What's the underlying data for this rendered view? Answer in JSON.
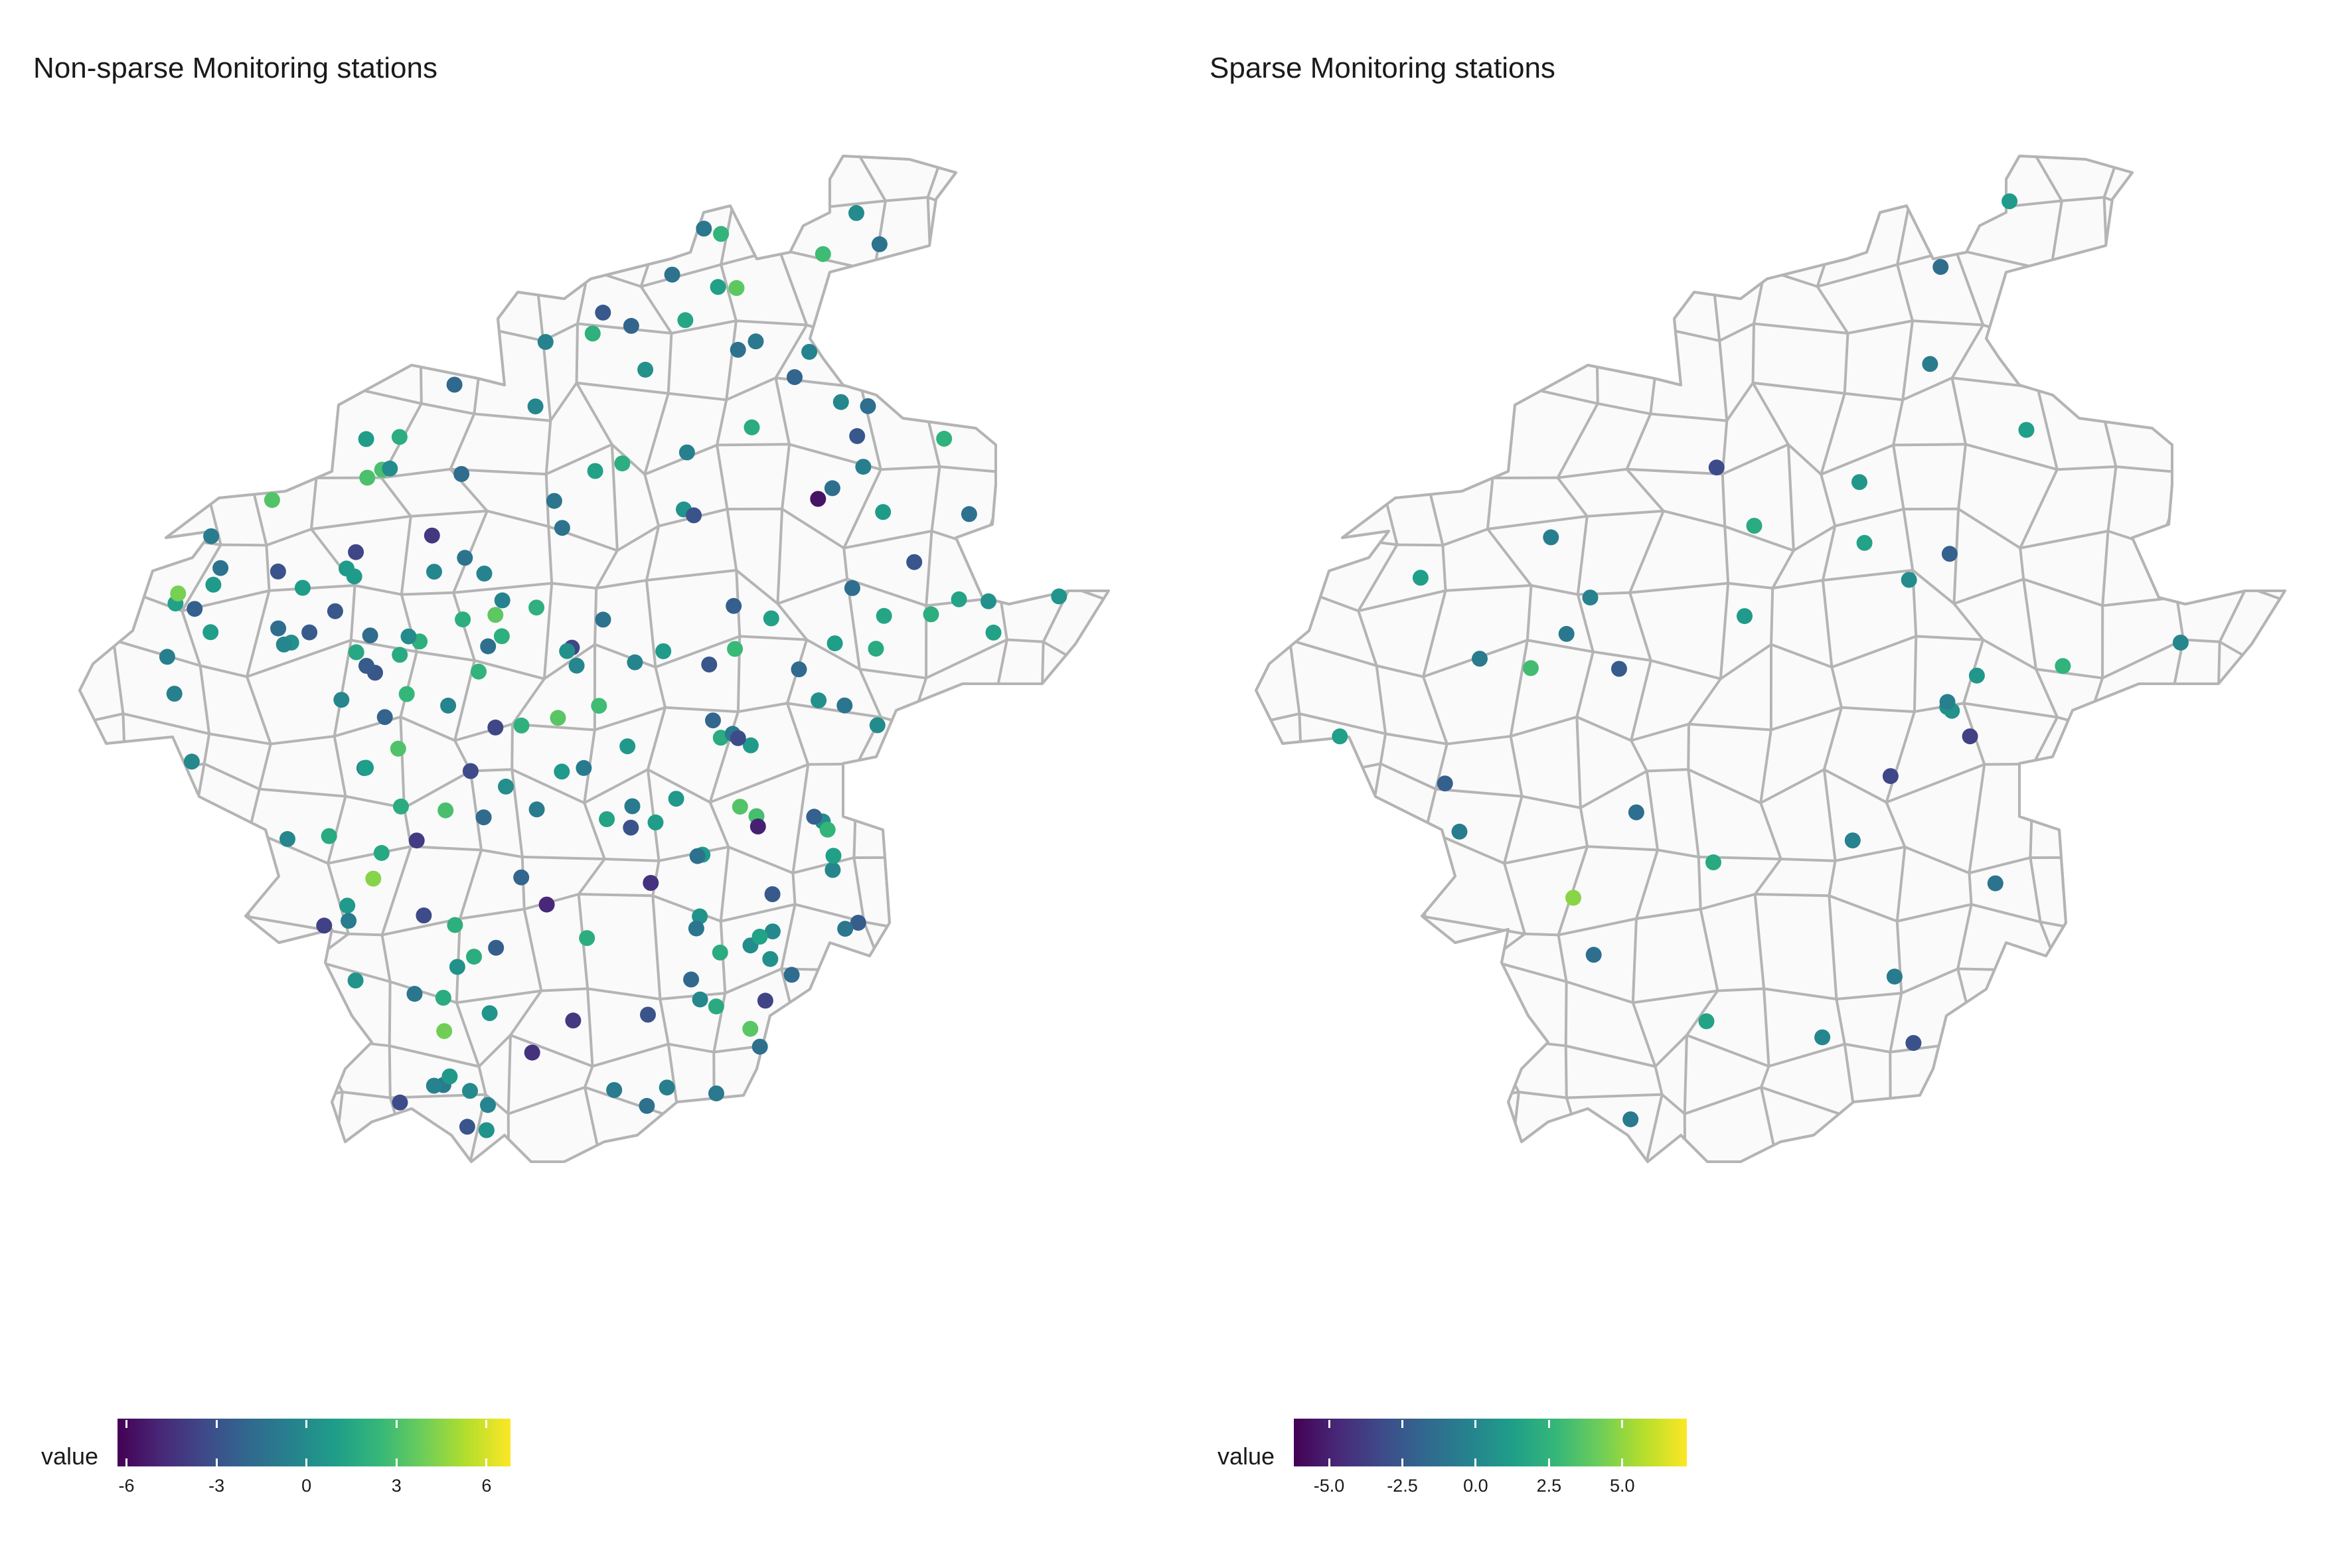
{
  "colors": {
    "viridis": [
      "#440154",
      "#482878",
      "#3e4a89",
      "#31688e",
      "#26828e",
      "#1f9e89",
      "#35b779",
      "#6dcd59",
      "#b4de2c",
      "#fde725"
    ],
    "boundary": "#b4b4b4",
    "region_fill": "#fafafa"
  },
  "panels": [
    {
      "title": "Non-sparse Monitoring stations",
      "legend": {
        "title": "value",
        "range": [
          -6.3,
          6.8
        ],
        "ticks": [
          -6,
          -3,
          0,
          3,
          6
        ],
        "tick_labels": [
          "-6",
          "-3",
          "0",
          "3",
          "6"
        ]
      },
      "station_count": 200,
      "value_scale": 6
    },
    {
      "title": "Sparse Monitoring stations",
      "legend": {
        "title": "value",
        "range": [
          -6.2,
          7.2
        ],
        "ticks": [
          -5,
          -2.5,
          0,
          2.5,
          5
        ],
        "tick_labels": [
          "-5.0",
          "-2.5",
          "0.0",
          "2.5",
          "5.0"
        ]
      },
      "station_count": 40,
      "value_scale": 5
    }
  ]
}
